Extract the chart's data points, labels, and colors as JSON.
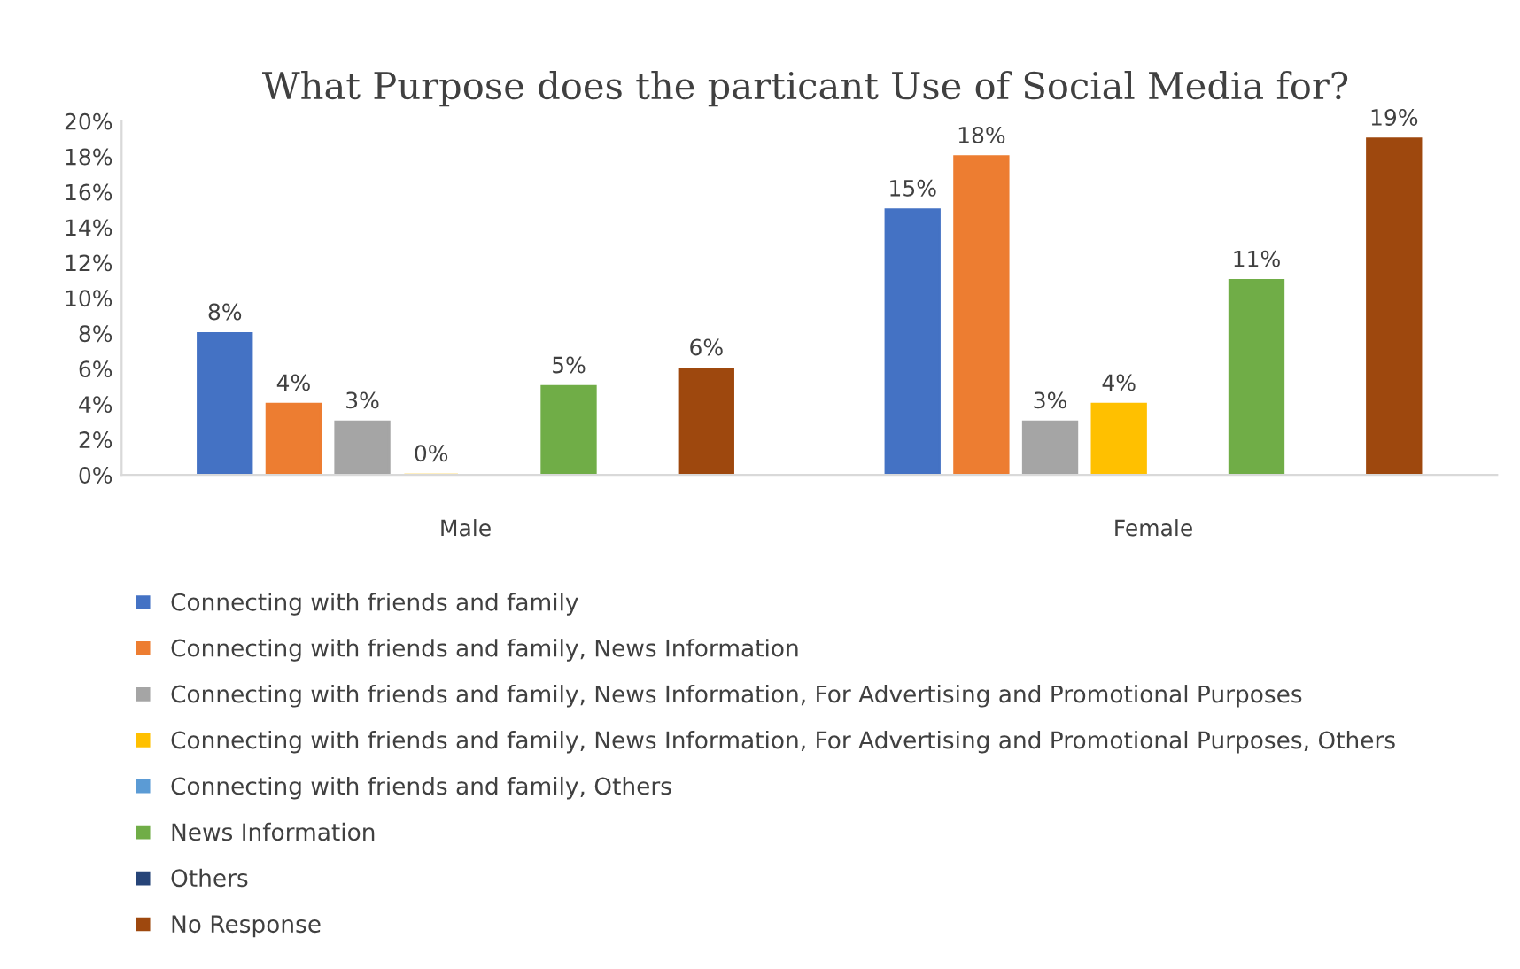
{
  "chart_data": {
    "type": "bar",
    "title": "What Purpose does the particant Use of Social Media for?",
    "categories": [
      "Male",
      "Female"
    ],
    "series": [
      {
        "name": "Connecting with friends and family",
        "color": "#4472c4",
        "values": [
          8,
          15
        ],
        "value_labels": [
          "8%",
          "15%"
        ]
      },
      {
        "name": "Connecting with friends and family, News Information",
        "color": "#ed7d31",
        "values": [
          4,
          18
        ],
        "value_labels": [
          "4%",
          "18%"
        ]
      },
      {
        "name": "Connecting with friends and family, News Information, For Advertising and Promotional Purposes",
        "color": "#a5a5a5",
        "values": [
          3,
          3
        ],
        "value_labels": [
          "3%",
          "3%"
        ]
      },
      {
        "name": "Connecting with friends and family, News Information, For Advertising and Promotional Purposes, Others",
        "color": "#ffc000",
        "values": [
          0,
          4
        ],
        "value_labels": [
          "0%",
          "4%"
        ]
      },
      {
        "name": "Connecting with friends and family, Others",
        "color": "#5b9bd5",
        "values": [
          null,
          null
        ],
        "value_labels": [
          null,
          null
        ]
      },
      {
        "name": "News Information",
        "color": "#70ad47",
        "values": [
          5,
          11
        ],
        "value_labels": [
          "5%",
          "11%"
        ]
      },
      {
        "name": "Others",
        "color": "#264478",
        "values": [
          null,
          null
        ],
        "value_labels": [
          null,
          null
        ]
      },
      {
        "name": "No Response",
        "color": "#9e480e",
        "values": [
          6,
          19
        ],
        "value_labels": [
          "6%",
          "19%"
        ]
      }
    ],
    "ylim": [
      0,
      20
    ],
    "yticks": [
      {
        "value": 0,
        "label": "0%"
      },
      {
        "value": 2,
        "label": "2%"
      },
      {
        "value": 4,
        "label": "4%"
      },
      {
        "value": 6,
        "label": "6%"
      },
      {
        "value": 8,
        "label": "8%"
      },
      {
        "value": 10,
        "label": "10%"
      },
      {
        "value": 12,
        "label": "12%"
      },
      {
        "value": 14,
        "label": "14%"
      },
      {
        "value": 16,
        "label": "16%"
      },
      {
        "value": 18,
        "label": "18%"
      },
      {
        "value": 20,
        "label": "20%"
      }
    ],
    "grid": false,
    "legend": "bottom"
  }
}
